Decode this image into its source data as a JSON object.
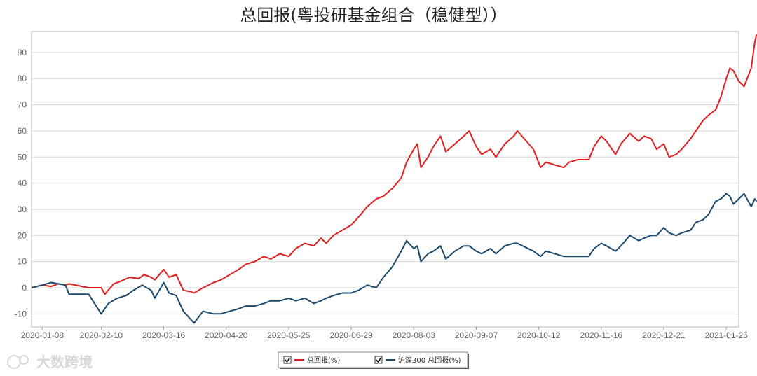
{
  "watermark": "大数跨境",
  "chart_data": {
    "type": "line",
    "title": "总回报(粤投研基金组合（稳健型））",
    "xlabel": "",
    "ylabel": "",
    "ylim": [
      -15,
      98
    ],
    "yticks": [
      -10,
      0,
      10,
      20,
      30,
      40,
      50,
      60,
      70,
      80,
      90
    ],
    "xlim": [
      "2020-01-02",
      "2021-02-01"
    ],
    "xticks": [
      "2020-01-08",
      "2020-02-10",
      "2020-03-16",
      "2020-04-20",
      "2020-05-25",
      "2020-06-29",
      "2020-08-03",
      "2020-09-07",
      "2020-10-12",
      "2020-11-16",
      "2020-12-21",
      "2021-01-25"
    ],
    "grid": true,
    "legend": "bottom-center",
    "series": [
      {
        "name": "总回报(%)",
        "color": "#e02020",
        "points": [
          [
            "2020-01-02",
            0
          ],
          [
            "2020-01-08",
            1
          ],
          [
            "2020-01-13",
            0.5
          ],
          [
            "2020-01-17",
            1.5
          ],
          [
            "2020-01-21",
            1
          ],
          [
            "2020-01-23",
            1.5
          ],
          [
            "2020-02-03",
            0
          ],
          [
            "2020-02-10",
            0
          ],
          [
            "2020-02-12",
            -2.5
          ],
          [
            "2020-02-17",
            1.5
          ],
          [
            "2020-02-21",
            2.5
          ],
          [
            "2020-02-26",
            4
          ],
          [
            "2020-03-02",
            3.5
          ],
          [
            "2020-03-05",
            5
          ],
          [
            "2020-03-09",
            4
          ],
          [
            "2020-03-11",
            3
          ],
          [
            "2020-03-16",
            7
          ],
          [
            "2020-03-19",
            4
          ],
          [
            "2020-03-23",
            5
          ],
          [
            "2020-03-27",
            -1
          ],
          [
            "2020-03-31",
            -1.5
          ],
          [
            "2020-04-02",
            -2
          ],
          [
            "2020-04-07",
            0
          ],
          [
            "2020-04-13",
            2
          ],
          [
            "2020-04-17",
            3
          ],
          [
            "2020-04-22",
            5
          ],
          [
            "2020-04-27",
            7
          ],
          [
            "2020-05-01",
            9
          ],
          [
            "2020-05-06",
            10
          ],
          [
            "2020-05-11",
            12
          ],
          [
            "2020-05-15",
            11
          ],
          [
            "2020-05-20",
            13
          ],
          [
            "2020-05-25",
            12
          ],
          [
            "2020-05-29",
            15
          ],
          [
            "2020-06-03",
            17
          ],
          [
            "2020-06-08",
            16
          ],
          [
            "2020-06-12",
            19
          ],
          [
            "2020-06-15",
            17
          ],
          [
            "2020-06-19",
            20
          ],
          [
            "2020-06-24",
            22
          ],
          [
            "2020-06-29",
            24
          ],
          [
            "2020-07-03",
            27
          ],
          [
            "2020-07-08",
            31
          ],
          [
            "2020-07-13",
            34
          ],
          [
            "2020-07-17",
            35
          ],
          [
            "2020-07-22",
            38
          ],
          [
            "2020-07-27",
            42
          ],
          [
            "2020-07-30",
            48
          ],
          [
            "2020-08-03",
            53
          ],
          [
            "2020-08-05",
            55
          ],
          [
            "2020-08-07",
            46
          ],
          [
            "2020-08-11",
            50
          ],
          [
            "2020-08-14",
            54
          ],
          [
            "2020-08-18",
            58
          ],
          [
            "2020-08-21",
            52
          ],
          [
            "2020-08-26",
            55
          ],
          [
            "2020-08-31",
            58
          ],
          [
            "2020-09-03",
            60
          ],
          [
            "2020-09-07",
            54
          ],
          [
            "2020-09-10",
            51
          ],
          [
            "2020-09-15",
            53
          ],
          [
            "2020-09-18",
            50
          ],
          [
            "2020-09-23",
            55
          ],
          [
            "2020-09-28",
            58
          ],
          [
            "2020-09-30",
            60
          ],
          [
            "2020-10-09",
            53
          ],
          [
            "2020-10-13",
            46
          ],
          [
            "2020-10-16",
            48
          ],
          [
            "2020-10-21",
            47
          ],
          [
            "2020-10-26",
            46
          ],
          [
            "2020-10-29",
            48
          ],
          [
            "2020-11-03",
            49
          ],
          [
            "2020-11-09",
            49
          ],
          [
            "2020-11-12",
            54
          ],
          [
            "2020-11-16",
            58
          ],
          [
            "2020-11-19",
            56
          ],
          [
            "2020-11-24",
            51
          ],
          [
            "2020-11-27",
            55
          ],
          [
            "2020-12-02",
            59
          ],
          [
            "2020-12-07",
            56
          ],
          [
            "2020-12-10",
            58
          ],
          [
            "2020-12-14",
            57
          ],
          [
            "2020-12-17",
            53
          ],
          [
            "2020-12-21",
            55
          ],
          [
            "2020-12-24",
            50
          ],
          [
            "2020-12-28",
            51
          ],
          [
            "2020-12-31",
            53
          ],
          [
            "2021-01-05",
            57
          ],
          [
            "2021-01-08",
            60
          ],
          [
            "2021-01-12",
            64
          ],
          [
            "2021-01-15",
            66
          ],
          [
            "2021-01-19",
            68
          ],
          [
            "2021-01-22",
            73
          ],
          [
            "2021-01-25",
            80
          ],
          [
            "2021-01-27",
            84
          ],
          [
            "2021-01-29",
            83
          ],
          [
            "2021-02-01",
            79
          ],
          [
            "2021-02-04",
            77
          ],
          [
            "2021-02-08",
            84
          ],
          [
            "2021-02-10",
            94
          ],
          [
            "2021-02-11",
            97
          ]
        ]
      },
      {
        "name": "沪深300 总回报(%)",
        "color": "#1a4a6e",
        "points": [
          [
            "2020-01-02",
            0
          ],
          [
            "2020-01-08",
            1
          ],
          [
            "2020-01-13",
            2
          ],
          [
            "2020-01-17",
            1.5
          ],
          [
            "2020-01-21",
            1
          ],
          [
            "2020-01-23",
            -2.5
          ],
          [
            "2020-02-03",
            -2.5
          ],
          [
            "2020-02-10",
            -10
          ],
          [
            "2020-02-14",
            -6
          ],
          [
            "2020-02-19",
            -4
          ],
          [
            "2020-02-24",
            -3
          ],
          [
            "2020-02-28",
            -1
          ],
          [
            "2020-03-04",
            1
          ],
          [
            "2020-03-09",
            -1
          ],
          [
            "2020-03-11",
            -4
          ],
          [
            "2020-03-16",
            2
          ],
          [
            "2020-03-19",
            -2
          ],
          [
            "2020-03-23",
            -3
          ],
          [
            "2020-03-27",
            -9
          ],
          [
            "2020-03-31",
            -12
          ],
          [
            "2020-04-02",
            -13.5
          ],
          [
            "2020-04-07",
            -9
          ],
          [
            "2020-04-13",
            -10
          ],
          [
            "2020-04-17",
            -10
          ],
          [
            "2020-04-22",
            -9
          ],
          [
            "2020-04-27",
            -8
          ],
          [
            "2020-05-01",
            -7
          ],
          [
            "2020-05-06",
            -7
          ],
          [
            "2020-05-11",
            -6
          ],
          [
            "2020-05-15",
            -5
          ],
          [
            "2020-05-20",
            -5
          ],
          [
            "2020-05-25",
            -4
          ],
          [
            "2020-05-29",
            -5
          ],
          [
            "2020-06-03",
            -4
          ],
          [
            "2020-06-08",
            -6
          ],
          [
            "2020-06-12",
            -5
          ],
          [
            "2020-06-15",
            -4
          ],
          [
            "2020-06-19",
            -3
          ],
          [
            "2020-06-24",
            -2
          ],
          [
            "2020-06-29",
            -2
          ],
          [
            "2020-07-03",
            -1
          ],
          [
            "2020-07-08",
            1
          ],
          [
            "2020-07-13",
            0
          ],
          [
            "2020-07-17",
            4
          ],
          [
            "2020-07-22",
            8
          ],
          [
            "2020-07-27",
            14
          ],
          [
            "2020-07-30",
            18
          ],
          [
            "2020-08-03",
            15
          ],
          [
            "2020-08-05",
            16
          ],
          [
            "2020-08-07",
            10
          ],
          [
            "2020-08-11",
            13
          ],
          [
            "2020-08-14",
            14
          ],
          [
            "2020-08-18",
            16
          ],
          [
            "2020-08-21",
            11
          ],
          [
            "2020-08-26",
            14
          ],
          [
            "2020-08-31",
            16
          ],
          [
            "2020-09-03",
            16
          ],
          [
            "2020-09-07",
            14
          ],
          [
            "2020-09-10",
            13
          ],
          [
            "2020-09-15",
            15
          ],
          [
            "2020-09-18",
            13
          ],
          [
            "2020-09-23",
            16
          ],
          [
            "2020-09-28",
            17
          ],
          [
            "2020-09-30",
            17
          ],
          [
            "2020-10-09",
            14
          ],
          [
            "2020-10-13",
            12
          ],
          [
            "2020-10-16",
            14
          ],
          [
            "2020-10-21",
            13
          ],
          [
            "2020-10-26",
            12
          ],
          [
            "2020-10-29",
            12
          ],
          [
            "2020-11-03",
            12
          ],
          [
            "2020-11-09",
            12
          ],
          [
            "2020-11-12",
            15
          ],
          [
            "2020-11-16",
            17
          ],
          [
            "2020-11-19",
            16
          ],
          [
            "2020-11-24",
            14
          ],
          [
            "2020-11-27",
            16
          ],
          [
            "2020-12-02",
            20
          ],
          [
            "2020-12-07",
            18
          ],
          [
            "2020-12-10",
            19
          ],
          [
            "2020-12-14",
            20
          ],
          [
            "2020-12-17",
            20
          ],
          [
            "2020-12-21",
            23
          ],
          [
            "2020-12-24",
            21
          ],
          [
            "2020-12-28",
            20
          ],
          [
            "2020-12-31",
            21
          ],
          [
            "2021-01-05",
            22
          ],
          [
            "2021-01-08",
            25
          ],
          [
            "2021-01-12",
            26
          ],
          [
            "2021-01-15",
            28
          ],
          [
            "2021-01-19",
            33
          ],
          [
            "2021-01-22",
            34
          ],
          [
            "2021-01-25",
            36
          ],
          [
            "2021-01-27",
            35
          ],
          [
            "2021-01-29",
            32
          ],
          [
            "2021-02-01",
            34
          ],
          [
            "2021-02-04",
            36
          ],
          [
            "2021-02-08",
            31
          ],
          [
            "2021-02-10",
            34
          ],
          [
            "2021-02-11",
            33
          ]
        ]
      }
    ]
  }
}
